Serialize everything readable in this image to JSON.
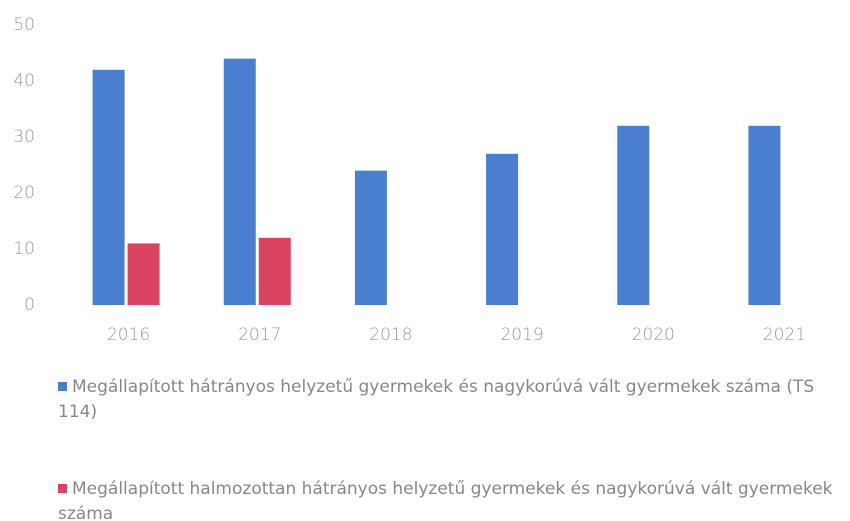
{
  "chart_data": {
    "type": "bar",
    "categories": [
      "2016",
      "2017",
      "2018",
      "2019",
      "2020",
      "2021"
    ],
    "series": [
      {
        "name": "Megállapított hátrányos helyzetű gyermekek és nagykorúvá vált gyermekek száma (TS 114)",
        "color": "#4a7fcf",
        "values": [
          42,
          44,
          24,
          27,
          32,
          32
        ]
      },
      {
        "name": "Megállapított halmozottan hátrányos helyzetű gyermekek és nagykorúvá vált gyermekek száma",
        "color": "#d9445e",
        "values": [
          11,
          12,
          null,
          null,
          null,
          null
        ]
      }
    ],
    "ylim": [
      0,
      50
    ],
    "yticks": [
      0,
      10,
      20,
      30,
      40,
      50
    ],
    "grid": false,
    "legend": "bottom"
  }
}
